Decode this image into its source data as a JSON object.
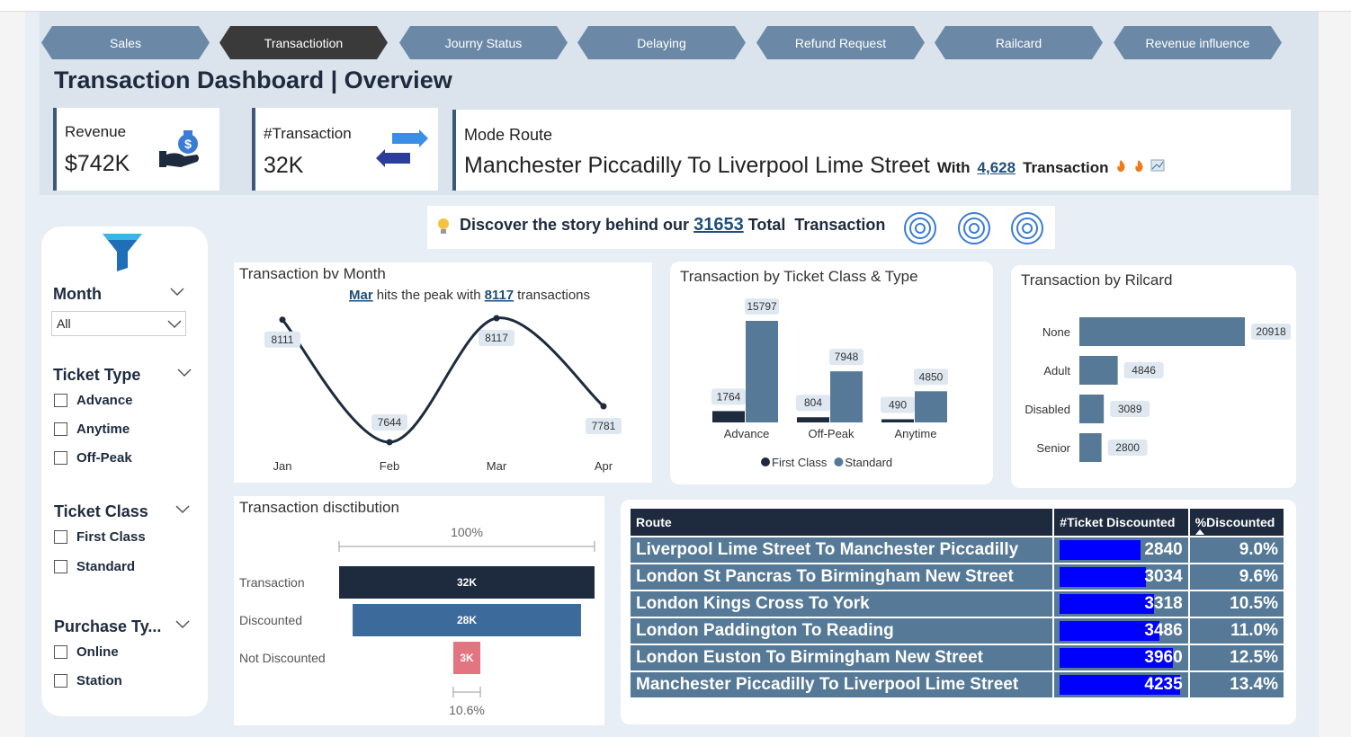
{
  "nav": [
    "Sales",
    "Transactiotion",
    "Journy Status",
    "Delaying",
    "Refund Request",
    "Railcard",
    "Revenue influence"
  ],
  "header": {
    "title": "Transaction Dashboard | Overview"
  },
  "kpis": {
    "revenue": {
      "label": "Revenue",
      "value": "$742K"
    },
    "transactions": {
      "label": "#Transaction",
      "value": "32K"
    },
    "mode_route": {
      "label": "Mode Route",
      "route": "Manchester Piccadilly To Liverpool Lime Street",
      "with": "With",
      "count": "4,628",
      "unit": "Transaction"
    }
  },
  "story": {
    "prefix": "Discover the story behind our",
    "total": 31653,
    "suffix": "Total  Transaction"
  },
  "filters": {
    "month": {
      "label": "Month",
      "selected": "All"
    },
    "ticket_type": {
      "label": "Ticket Type",
      "options": [
        "Advance",
        "Anytime",
        "Off-Peak"
      ]
    },
    "ticket_class": {
      "label": "Ticket Class",
      "options": [
        "First Class",
        "Standard"
      ]
    },
    "purchase_type": {
      "label": "Purchase Ty...",
      "options": [
        "Online",
        "Station"
      ]
    }
  },
  "chart_data": [
    {
      "type": "line",
      "title": "Transaction bv Month",
      "annotation": {
        "category": "Mar",
        "text": "hits the peak with",
        "value": 8117,
        "unit": "transactions"
      },
      "categories": [
        "Jan",
        "Feb",
        "Mar",
        "Apr"
      ],
      "values": [
        8111,
        7644,
        8117,
        7781
      ],
      "color": "#1e2b3f"
    },
    {
      "type": "bar",
      "title": "Transaction by Ticket Class & Type",
      "categories": [
        "Advance",
        "Off-Peak",
        "Anytime"
      ],
      "series": [
        {
          "name": "First Class",
          "color": "#1e2b3f",
          "values": [
            1764,
            804,
            490
          ]
        },
        {
          "name": "Standard",
          "color": "#557996",
          "values": [
            15797,
            7948,
            4850
          ]
        }
      ],
      "legend": "bottom"
    },
    {
      "type": "hbar",
      "title": "Transaction by Rilcard",
      "categories": [
        "None",
        "Adult",
        "Disabled",
        "Senior"
      ],
      "values": [
        20918,
        4846,
        3089,
        2800
      ],
      "color": "#557996"
    },
    {
      "type": "funnel",
      "title": "Transaction disctibution",
      "categories": [
        "Transaction",
        "Discounted",
        "Not Discounted"
      ],
      "values": [
        31653,
        28298,
        3355
      ],
      "value_labels": [
        "32K",
        "28K",
        "3K"
      ],
      "colors": [
        "#1e2b3f",
        "#3c6a9b",
        "#e27580"
      ],
      "top_label": "100%",
      "bottom_label": "10.6%"
    }
  ],
  "table": {
    "columns": [
      "Route",
      "#Ticket Discounted",
      "%Discounted"
    ],
    "bar_color": "#0000ff",
    "rows": [
      [
        "Liverpool Lime Street To Manchester Piccadilly",
        2840,
        "9.0%"
      ],
      [
        "London St Pancras To Birmingham New Street",
        3034,
        "9.6%"
      ],
      [
        "London Kings Cross To York",
        3318,
        "10.5%"
      ],
      [
        "London Paddington To Reading",
        3486,
        "11.0%"
      ],
      [
        "London Euston To Birmingham New Street",
        3960,
        "12.5%"
      ],
      [
        "Manchester Piccadilly To Liverpool Lime Street",
        4235,
        "13.4%"
      ]
    ]
  }
}
